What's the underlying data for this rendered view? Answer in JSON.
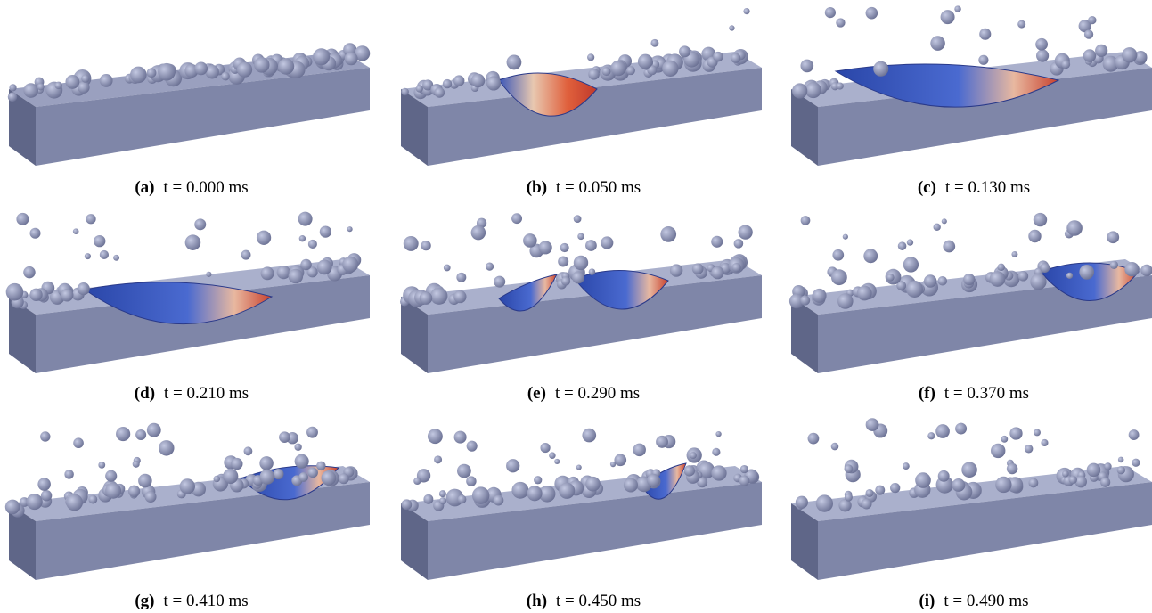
{
  "figure": {
    "panels": [
      {
        "label": "(a)",
        "caption": "t = 0.000 ms"
      },
      {
        "label": "(b)",
        "caption": "t = 0.050 ms"
      },
      {
        "label": "(c)",
        "caption": "t = 0.130 ms"
      },
      {
        "label": "(d)",
        "caption": "t = 0.210 ms"
      },
      {
        "label": "(e)",
        "caption": "t = 0.290 ms"
      },
      {
        "label": "(f)",
        "caption": "t = 0.370 ms"
      },
      {
        "label": "(g)",
        "caption": "t = 0.410 ms"
      },
      {
        "label": "(h)",
        "caption": "t = 0.450 ms"
      },
      {
        "label": "(i)",
        "caption": "t = 0.490 ms"
      }
    ]
  }
}
